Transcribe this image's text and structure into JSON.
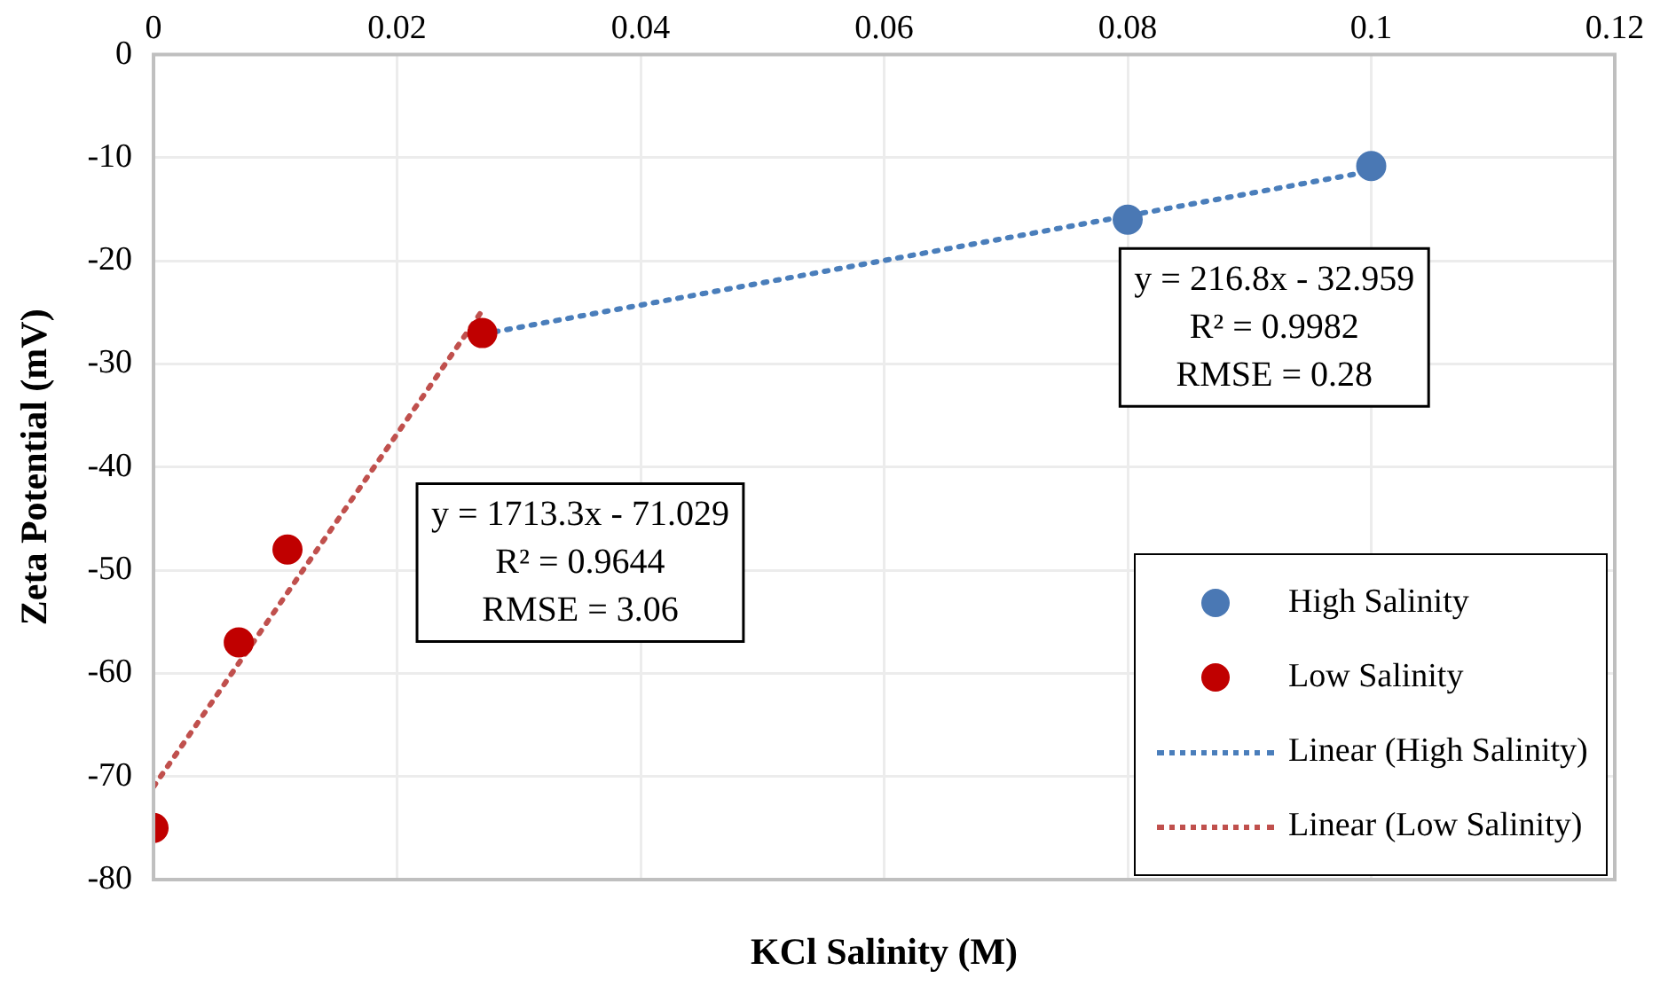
{
  "chart_data": {
    "type": "scatter",
    "xlabel": "KCl Salinity (M)",
    "ylabel": "Zeta Potential (mV)",
    "xlim": [
      0,
      0.12
    ],
    "xticks": [
      0,
      0.02,
      0.04,
      0.06,
      0.08,
      0.1,
      0.12
    ],
    "ylim": [
      -80,
      0
    ],
    "yticks": [
      -80,
      -70,
      -60,
      -50,
      -40,
      -30,
      -20,
      -10,
      0
    ],
    "grid": true,
    "legend": "bottom right",
    "marker": "circle",
    "series": [
      {
        "name": "High Salinity",
        "type": "scatter",
        "color": "#4a78b4",
        "x": [
          0.08,
          0.1
        ],
        "values": [
          -16,
          -10.8
        ]
      },
      {
        "name": "Low Salinity",
        "type": "scatter",
        "color": "#c00000",
        "x": [
          0,
          0.007,
          0.011,
          0.027
        ],
        "values": [
          -75,
          -57,
          -48,
          -27
        ]
      },
      {
        "name": "Linear (High Salinity)",
        "type": "line",
        "color": "#4a7ebb",
        "line_style": "dotted",
        "marker": "none",
        "x": [
          0.027,
          0.1
        ],
        "values": [
          -27.1,
          -11.3
        ]
      },
      {
        "name": "Linear (Low Salinity)",
        "type": "line",
        "color": "#c0504d",
        "line_style": "dotted",
        "marker": "none",
        "x": [
          0,
          0.027
        ],
        "values": [
          -71,
          -24.8
        ]
      }
    ],
    "annotations": [
      "y = 216.8x - 32.959\nR² = 0.9982\nRMSE = 0.28",
      "y = 1713.3x - 71.029\nR² = 0.9644\nRMSE = 3.06"
    ]
  }
}
